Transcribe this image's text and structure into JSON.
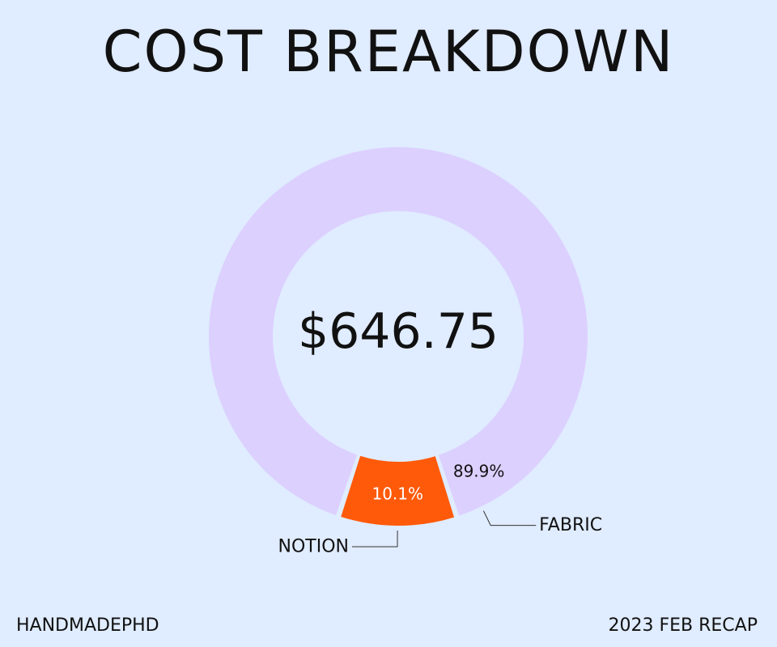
{
  "title": "COST BREAKDOWN",
  "center_label": "$646.75",
  "footer": {
    "left": "HANDMADEPHD",
    "right": "2023 FEB RECAP"
  },
  "chart_data": {
    "type": "pie",
    "variant": "donut",
    "title": "COST BREAKDOWN",
    "total_label": "$646.75",
    "categories": [
      "FABRIC",
      "NOTION"
    ],
    "values": [
      89.9,
      10.1
    ],
    "value_labels": [
      "89.9%",
      "10.1%"
    ],
    "colors": [
      "#dcd0ff",
      "#ff5a0a"
    ],
    "label_colors": [
      "#111111",
      "#ffffff"
    ]
  }
}
